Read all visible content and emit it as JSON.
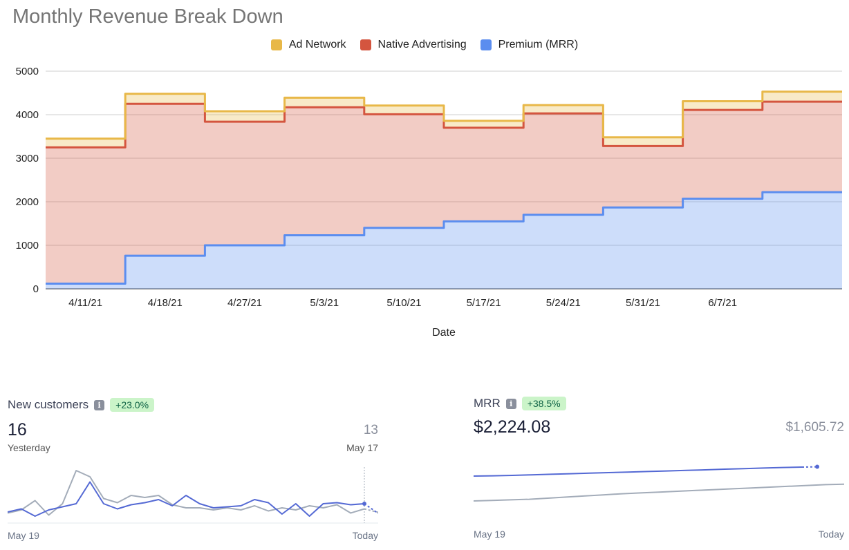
{
  "chart_data": [
    {
      "type": "area",
      "title": "Monthly Revenue Break Down",
      "xlabel": "Date",
      "ylabel": "",
      "ylim": [
        0,
        5000
      ],
      "yticks": [
        0,
        1000,
        2000,
        3000,
        4000,
        5000
      ],
      "grid": true,
      "legend_position": "top-center",
      "stacked": true,
      "step": true,
      "categories": [
        "4/11/21",
        "4/18/21",
        "4/27/21",
        "5/3/21",
        "5/10/21",
        "5/17/21",
        "5/24/21",
        "5/31/21",
        "6/7/21",
        ""
      ],
      "series": [
        {
          "name": "Premium (MRR)",
          "color": "#5b8def",
          "values": [
            120,
            760,
            1000,
            1230,
            1400,
            1550,
            1700,
            1870,
            2070,
            2220
          ]
        },
        {
          "name": "Native Advertising",
          "color": "#d4553f",
          "values": [
            3130,
            3490,
            2840,
            2940,
            2610,
            2150,
            2330,
            1410,
            2040,
            2080
          ]
        },
        {
          "name": "Ad Network",
          "color": "#e8b848",
          "values": [
            200,
            230,
            240,
            220,
            200,
            160,
            190,
            200,
            200,
            230
          ]
        }
      ]
    },
    {
      "type": "line",
      "title": "New customers",
      "change": "+23.0%",
      "current_value": "16",
      "current_label": "Yesterday",
      "previous_value": "13",
      "previous_label": "May 17",
      "x_start": "May 19",
      "x_end": "Today",
      "series": [
        {
          "name": "",
          "color": "#5469d4",
          "values": [
            6,
            9,
            2,
            8,
            11,
            14,
            35,
            14,
            9,
            13,
            15,
            18,
            12,
            22,
            14,
            10,
            11,
            12,
            18,
            15,
            4,
            14,
            2,
            14,
            15,
            13,
            14
          ]
        },
        {
          "name": "",
          "color": "#a3acb9",
          "values": [
            5,
            8,
            17,
            3,
            14,
            46,
            40,
            19,
            15,
            22,
            20,
            22,
            13,
            10,
            10,
            8,
            10,
            8,
            12,
            7,
            10,
            8,
            12,
            10,
            13,
            5,
            9
          ]
        }
      ]
    },
    {
      "type": "line",
      "title": "MRR",
      "change": "+38.5%",
      "current_value": "$2,224.08",
      "previous_value": "$1,605.72",
      "x_start": "May 19",
      "x_end": "Today",
      "series": [
        {
          "name": "",
          "color": "#5469d4",
          "values": [
            1900,
            1910,
            1925,
            1945,
            1965,
            1985,
            2005,
            2025,
            2045,
            2065,
            2085,
            2105,
            2125,
            2150,
            2170,
            2190,
            2210,
            2224
          ]
        },
        {
          "name": "",
          "color": "#a3acb9",
          "values": [
            1000,
            1020,
            1040,
            1060,
            1100,
            1140,
            1180,
            1220,
            1260,
            1290,
            1320,
            1350,
            1380,
            1410,
            1440,
            1470,
            1500,
            1530,
            1560,
            1590,
            1606
          ]
        }
      ]
    }
  ],
  "cards": {
    "new_customers": {
      "title": "New customers",
      "info_icon": "i",
      "change": "+23.0%",
      "value": "16",
      "value_label": "Yesterday",
      "previous": "13",
      "previous_label": "May 17",
      "x_start": "May 19",
      "x_end": "Today"
    },
    "mrr": {
      "title": "MRR",
      "info_icon": "i",
      "change": "+38.5%",
      "value": "$2,224.08",
      "previous": "$1,605.72",
      "x_start": "May 19",
      "x_end": "Today"
    }
  }
}
